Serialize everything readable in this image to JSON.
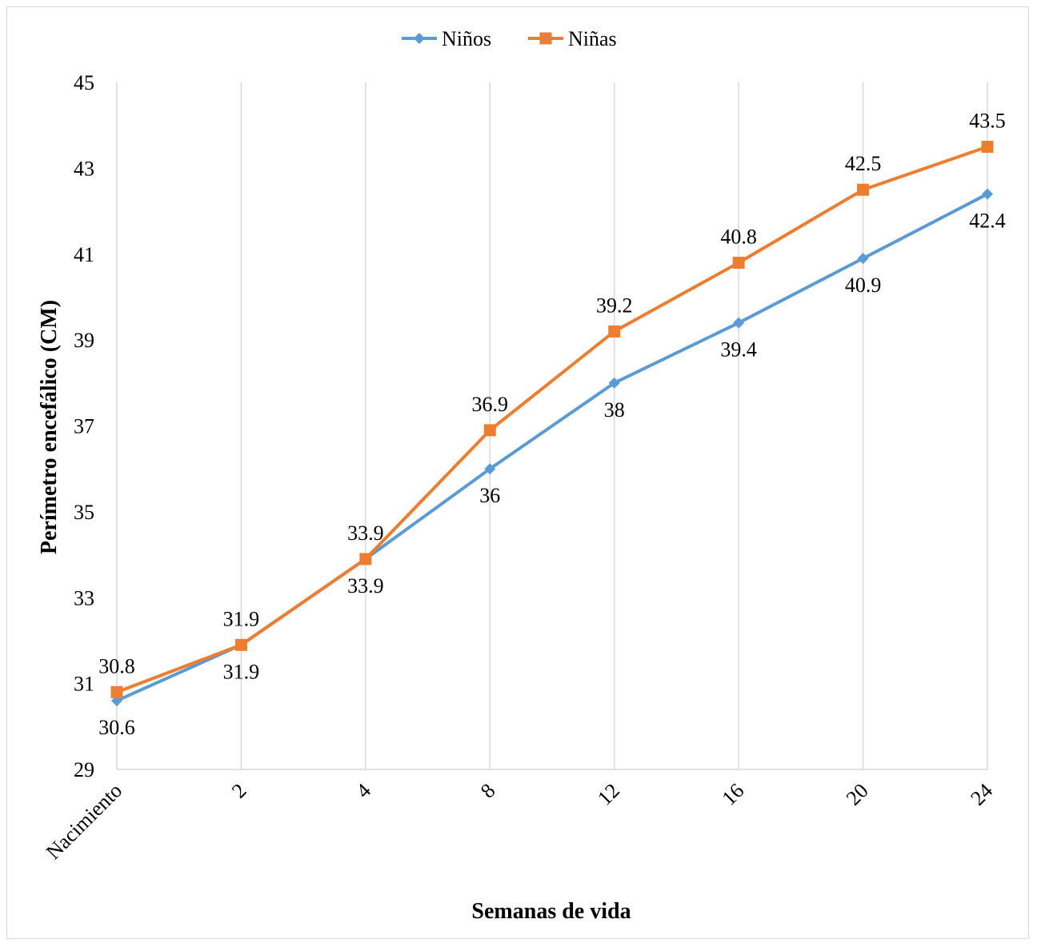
{
  "chart_data": {
    "type": "line",
    "title": "",
    "xlabel": "Semanas de vida",
    "ylabel": "Perímetro encefálico (CM)",
    "categories": [
      "Nacimiento",
      "2",
      "4",
      "8",
      "12",
      "16",
      "20",
      "24"
    ],
    "ylim": [
      29,
      45
    ],
    "yticks": [
      29,
      31,
      33,
      35,
      37,
      39,
      41,
      43,
      45
    ],
    "grid": "vertical",
    "legend_position": "top",
    "series": [
      {
        "name": "Niños",
        "values": [
          30.6,
          31.9,
          33.9,
          36,
          38,
          39.4,
          40.9,
          42.4
        ],
        "labels": [
          "30.6",
          "31.9",
          "33.9",
          "36",
          "38",
          "39.4",
          "40.9",
          "42.4"
        ],
        "color": "#5b9bd5",
        "marker": "diamond",
        "label_position": "below"
      },
      {
        "name": "Niñas",
        "values": [
          30.8,
          31.9,
          33.9,
          36.9,
          39.2,
          40.8,
          42.5,
          43.5
        ],
        "labels": [
          "30.8",
          "31.9",
          "33.9",
          "36.9",
          "39.2",
          "40.8",
          "42.5",
          "43.5"
        ],
        "color": "#ed7d31",
        "marker": "square",
        "label_position": "above"
      }
    ]
  }
}
